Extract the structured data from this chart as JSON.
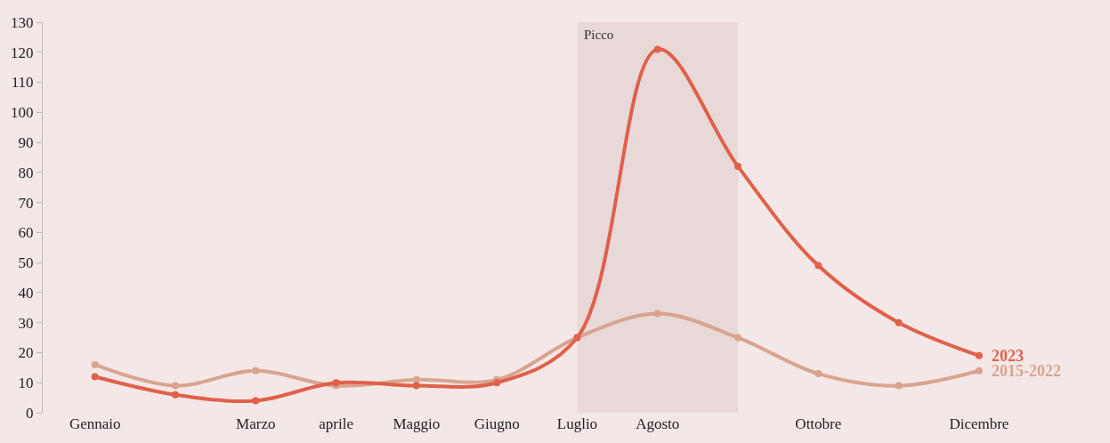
{
  "chart_data": {
    "type": "line",
    "categories": [
      "Gennaio",
      null,
      "Marzo",
      "aprile",
      "Maggio",
      "Giugno",
      "Luglio",
      "Agosto",
      null,
      "Ottobre",
      null,
      "Dicembre"
    ],
    "series": [
      {
        "name": "2015-2022",
        "color": "#d9a48f",
        "values": [
          16,
          9,
          14,
          9,
          11,
          11,
          25,
          33,
          25,
          13,
          9,
          14
        ]
      },
      {
        "name": "2023",
        "color": "#e0604a",
        "values": [
          12,
          6,
          4,
          10,
          9,
          10,
          25,
          121,
          82,
          49,
          30,
          19
        ]
      }
    ],
    "ylim": [
      0,
      130
    ],
    "yticks": [
      0,
      10,
      20,
      30,
      40,
      50,
      60,
      70,
      80,
      90,
      100,
      110,
      120,
      130
    ],
    "annotations": [
      "Picco"
    ],
    "grid": false,
    "legend": false,
    "marker": "circle",
    "line_style": "solid"
  }
}
